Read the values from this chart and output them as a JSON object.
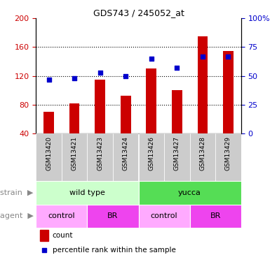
{
  "title": "GDS743 / 245052_at",
  "samples": [
    "GSM13420",
    "GSM13421",
    "GSM13423",
    "GSM13424",
    "GSM13426",
    "GSM13427",
    "GSM13428",
    "GSM13429"
  ],
  "bar_values": [
    70,
    82,
    115,
    93,
    130,
    100,
    175,
    155
  ],
  "dot_values": [
    47,
    48,
    53,
    50,
    65,
    57,
    67,
    67
  ],
  "bar_color": "#cc0000",
  "dot_color": "#0000cc",
  "ylim_left": [
    40,
    200
  ],
  "ylim_right": [
    0,
    100
  ],
  "yticks_left": [
    40,
    80,
    120,
    160,
    200
  ],
  "yticks_right": [
    0,
    25,
    50,
    75,
    100
  ],
  "legend_count": "count",
  "legend_pct": "percentile rank within the sample",
  "xlabel_strain": "strain",
  "xlabel_agent": "agent",
  "tick_label_color_left": "#cc0000",
  "tick_label_color_right": "#0000cc",
  "bg_color": "#ffffff",
  "sample_bg": "#cccccc",
  "strain_left_color": "#ccffcc",
  "strain_right_color": "#55dd55",
  "agent_light_color": "#ffaaff",
  "agent_dark_color": "#ee44ee",
  "grid_ticks": [
    80,
    120,
    160
  ]
}
